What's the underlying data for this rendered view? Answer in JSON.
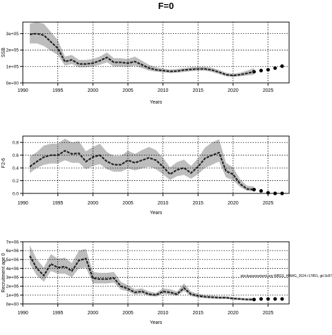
{
  "title": "F=0",
  "chart_data": [
    {
      "type": "line",
      "xlabel": "Years",
      "ylabel": "SSB",
      "xlim": [
        1990,
        2028
      ],
      "ylim": [
        0,
        370000
      ],
      "x_ticks": [
        1990,
        1995,
        2000,
        2005,
        2010,
        2015,
        2020,
        2025
      ],
      "y_ticks": [
        {
          "value": 0,
          "label": "0e+00"
        },
        {
          "value": 100000,
          "label": "1e+05"
        },
        {
          "value": 200000,
          "label": "2e+05"
        },
        {
          "value": 300000,
          "label": "3e+05"
        }
      ],
      "grid": true,
      "x": [
        1991,
        1992,
        1993,
        1994,
        1995,
        1996,
        1997,
        1998,
        1999,
        2000,
        2001,
        2002,
        2003,
        2004,
        2005,
        2006,
        2007,
        2008,
        2009,
        2010,
        2011,
        2012,
        2013,
        2014,
        2015,
        2016,
        2017,
        2018,
        2019,
        2020,
        2021,
        2022,
        2023
      ],
      "values": [
        295000,
        300000,
        290000,
        250000,
        210000,
        130000,
        140000,
        115000,
        115000,
        120000,
        135000,
        155000,
        125000,
        125000,
        120000,
        130000,
        110000,
        90000,
        80000,
        75000,
        70000,
        72000,
        78000,
        82000,
        85000,
        85000,
        78000,
        65000,
        50000,
        45000,
        50000,
        58000,
        68000
      ],
      "lower": [
        240000,
        240000,
        225000,
        195000,
        170000,
        105000,
        115000,
        95000,
        95000,
        100000,
        110000,
        125000,
        100000,
        100000,
        98000,
        105000,
        90000,
        75000,
        68000,
        64000,
        60000,
        62000,
        67000,
        71000,
        74000,
        74000,
        66000,
        54000,
        40000,
        36000,
        40000,
        45000,
        50000
      ],
      "upper": [
        360000,
        370000,
        360000,
        310000,
        260000,
        160000,
        170000,
        140000,
        140000,
        145000,
        160000,
        185000,
        150000,
        150000,
        145000,
        160000,
        135000,
        110000,
        95000,
        88000,
        82000,
        85000,
        90000,
        95000,
        98000,
        98000,
        92000,
        78000,
        62000,
        56000,
        62000,
        75000,
        90000
      ],
      "projection_x": [
        2023,
        2024,
        2025,
        2026,
        2027
      ],
      "projection_values": [
        68000,
        75000,
        80000,
        90000,
        102000
      ]
    },
    {
      "type": "line",
      "xlabel": "Years",
      "ylabel": "F2-6",
      "xlim": [
        1990,
        2028
      ],
      "ylim": [
        0,
        0.9
      ],
      "x_ticks": [
        1990,
        1995,
        2000,
        2005,
        2010,
        2015,
        2020,
        2025
      ],
      "y_ticks": [
        {
          "value": 0,
          "label": "0.0"
        },
        {
          "value": 0.2,
          "label": "0.2"
        },
        {
          "value": 0.4,
          "label": "0.4"
        },
        {
          "value": 0.6,
          "label": "0.6"
        },
        {
          "value": 0.8,
          "label": "0.8"
        }
      ],
      "grid": true,
      "x": [
        1991,
        1992,
        1993,
        1994,
        1995,
        1996,
        1997,
        1998,
        1999,
        2000,
        2001,
        2002,
        2003,
        2004,
        2005,
        2006,
        2007,
        2008,
        2009,
        2010,
        2011,
        2012,
        2013,
        2014,
        2015,
        2016,
        2017,
        2018,
        2019,
        2020,
        2021,
        2022,
        2023
      ],
      "values": [
        0.42,
        0.5,
        0.57,
        0.6,
        0.6,
        0.67,
        0.62,
        0.63,
        0.5,
        0.57,
        0.6,
        0.5,
        0.45,
        0.45,
        0.52,
        0.48,
        0.52,
        0.56,
        0.52,
        0.42,
        0.3,
        0.37,
        0.4,
        0.32,
        0.42,
        0.55,
        0.6,
        0.64,
        0.35,
        0.3,
        0.15,
        0.07,
        0.06
      ],
      "lower": [
        0.32,
        0.4,
        0.45,
        0.47,
        0.47,
        0.52,
        0.48,
        0.48,
        0.38,
        0.43,
        0.46,
        0.38,
        0.34,
        0.34,
        0.39,
        0.36,
        0.39,
        0.42,
        0.38,
        0.3,
        0.21,
        0.27,
        0.29,
        0.23,
        0.3,
        0.4,
        0.45,
        0.5,
        0.25,
        0.21,
        0.1,
        0.04,
        0.03
      ],
      "upper": [
        0.58,
        0.65,
        0.75,
        0.78,
        0.78,
        0.86,
        0.8,
        0.82,
        0.66,
        0.73,
        0.78,
        0.65,
        0.59,
        0.59,
        0.67,
        0.62,
        0.68,
        0.73,
        0.68,
        0.56,
        0.41,
        0.49,
        0.53,
        0.43,
        0.55,
        0.72,
        0.8,
        0.85,
        0.48,
        0.41,
        0.22,
        0.12,
        0.11
      ],
      "projection_x": [
        2023,
        2024,
        2025,
        2026,
        2027
      ],
      "projection_values": [
        0.06,
        0.04,
        0.01,
        0.0,
        0.0
      ]
    },
    {
      "type": "line",
      "xlabel": "Years",
      "ylabel": "Recruitment age 0",
      "xlim": [
        1990,
        2028
      ],
      "ylim": [
        0,
        7000000
      ],
      "x_ticks": [
        1990,
        1995,
        2000,
        2005,
        2010,
        2015,
        2020,
        2025
      ],
      "y_ticks": [
        {
          "value": 0,
          "label": "0e+00"
        },
        {
          "value": 1000000,
          "label": "1e+06"
        },
        {
          "value": 2000000,
          "label": "2e+06"
        },
        {
          "value": 3000000,
          "label": "3e+06"
        },
        {
          "value": 4000000,
          "label": "4e+06"
        },
        {
          "value": 5000000,
          "label": "5e+06"
        },
        {
          "value": 6000000,
          "label": "6e+06"
        },
        {
          "value": 7000000,
          "label": "7e+06"
        }
      ],
      "grid": true,
      "x": [
        1991,
        1992,
        1993,
        1994,
        1995,
        1996,
        1997,
        1998,
        1999,
        2000,
        2001,
        2002,
        2003,
        2004,
        2005,
        2006,
        2007,
        2008,
        2009,
        2010,
        2011,
        2012,
        2013,
        2014,
        2015,
        2016,
        2017,
        2018,
        2019,
        2020,
        2021,
        2022,
        2023
      ],
      "values": [
        5400000,
        4000000,
        3200000,
        4500000,
        4100000,
        4200000,
        3700000,
        4900000,
        5100000,
        2900000,
        2800000,
        2800000,
        2900000,
        2000000,
        1700000,
        1300000,
        1400000,
        1100000,
        1000000,
        1400000,
        1300000,
        1100000,
        1800000,
        1100000,
        900000,
        800000,
        750000,
        700000,
        700000,
        600000,
        550000,
        500000,
        500000
      ],
      "lower": [
        4500000,
        3200000,
        2500000,
        3700000,
        3400000,
        3400000,
        3000000,
        4000000,
        4100000,
        2300000,
        2300000,
        2300000,
        2400000,
        1600000,
        1400000,
        1050000,
        1150000,
        900000,
        820000,
        1150000,
        1050000,
        900000,
        1450000,
        880000,
        720000,
        640000,
        600000,
        560000,
        560000,
        480000,
        420000,
        380000,
        360000
      ],
      "upper": [
        6600000,
        5000000,
        4100000,
        5600000,
        5100000,
        5200000,
        4600000,
        6000000,
        6200000,
        3600000,
        3500000,
        3500000,
        3600000,
        2500000,
        2100000,
        1650000,
        1750000,
        1400000,
        1250000,
        1750000,
        1650000,
        1400000,
        2300000,
        1400000,
        1150000,
        1000000,
        950000,
        880000,
        880000,
        750000,
        700000,
        650000,
        680000
      ],
      "projection_x": [
        2023,
        2024,
        2025,
        2026,
        2027
      ],
      "projection_values": [
        500000,
        560000,
        560000,
        560000,
        560000
      ],
      "annotation": "stockassessment.org WBSS_HAWG_2024 r17851, git:3c87"
    }
  ]
}
